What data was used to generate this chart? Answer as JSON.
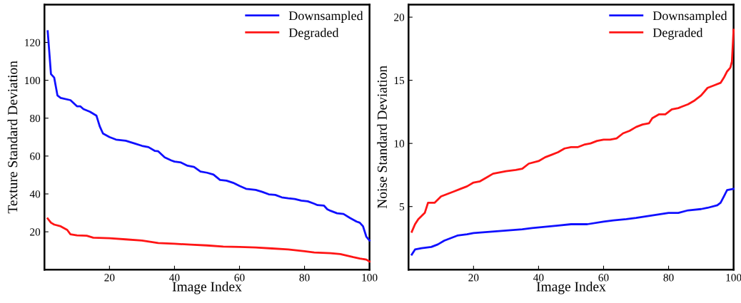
{
  "chart_data": [
    {
      "type": "line",
      "xlabel": "Image Index",
      "ylabel": "Texture Standard Deviation",
      "xlim": [
        0,
        100
      ],
      "ylim": [
        0,
        140
      ],
      "xticks": [
        20,
        40,
        60,
        80,
        100
      ],
      "yticks": [
        20,
        40,
        60,
        80,
        100,
        120
      ],
      "legend": "top right",
      "grid": false,
      "marker": "none",
      "line_style": "solid",
      "series": [
        {
          "name": "Downsampled",
          "color": "#1010ff",
          "x": [
            1,
            2,
            3,
            4,
            5,
            8,
            10,
            11,
            12,
            14,
            16,
            17,
            18,
            20,
            22,
            25,
            28,
            30,
            32,
            34,
            35,
            37,
            39,
            40,
            42,
            44,
            46,
            48,
            50,
            52,
            54,
            56,
            58,
            60,
            62,
            65,
            67,
            69,
            71,
            73,
            75,
            77,
            79,
            81,
            83,
            84,
            86,
            87,
            88,
            90,
            92,
            94,
            96,
            97,
            98,
            99,
            100
          ],
          "values": [
            125.9,
            103.3,
            101.4,
            92,
            90.7,
            89.5,
            86.3,
            86.3,
            84.8,
            83.4,
            81.3,
            75.7,
            71.9,
            70,
            68.7,
            68.1,
            66.5,
            65.4,
            64.7,
            62.7,
            62.5,
            59.3,
            57.7,
            57.1,
            56.6,
            54.9,
            54.3,
            51.8,
            51.2,
            50.2,
            47.4,
            47,
            45.9,
            44.2,
            42.7,
            42.1,
            41.1,
            39.8,
            39.5,
            38.2,
            37.7,
            37.3,
            36.5,
            36.1,
            34.8,
            34.1,
            33.8,
            31.9,
            31.1,
            29.8,
            29.4,
            27.3,
            25.4,
            24.8,
            22.9,
            17.5,
            15.4
          ]
        },
        {
          "name": "Degraded",
          "color": "#ff1515",
          "x": [
            1,
            2,
            3,
            5,
            7,
            8,
            10,
            13,
            15,
            20,
            25,
            30,
            35,
            40,
            45,
            50,
            55,
            60,
            65,
            70,
            75,
            80,
            83,
            88,
            91,
            95,
            97,
            99,
            100
          ],
          "values": [
            27,
            24.8,
            23.8,
            22.9,
            21,
            18.7,
            18.1,
            17.9,
            16.9,
            16.6,
            16,
            15.4,
            14.1,
            13.7,
            13.2,
            12.8,
            12.2,
            12,
            11.7,
            11.2,
            10.7,
            9.7,
            9.1,
            8.7,
            8.2,
            6.6,
            5.9,
            5.3,
            4.3
          ]
        }
      ]
    },
    {
      "type": "line",
      "xlabel": "Image Index",
      "ylabel": "Noise Standard Deviation",
      "xlim": [
        0,
        100
      ],
      "ylim": [
        0,
        21
      ],
      "xticks": [
        20,
        40,
        60,
        80,
        100
      ],
      "yticks": [
        5,
        10,
        15,
        20
      ],
      "legend": "top right",
      "grid": false,
      "marker": "none",
      "line_style": "solid",
      "series": [
        {
          "name": "Downsampled",
          "color": "#1010ff",
          "x": [
            1,
            2,
            4,
            7,
            9,
            11,
            13,
            15,
            18,
            20,
            25,
            30,
            35,
            38,
            42,
            46,
            50,
            55,
            60,
            63,
            67,
            70,
            75,
            80,
            83,
            86,
            90,
            92,
            95,
            96,
            97,
            98,
            100
          ],
          "values": [
            1.2,
            1.6,
            1.7,
            1.8,
            2.0,
            2.3,
            2.5,
            2.7,
            2.8,
            2.9,
            3.0,
            3.1,
            3.2,
            3.3,
            3.4,
            3.5,
            3.6,
            3.6,
            3.8,
            3.9,
            4.0,
            4.1,
            4.3,
            4.5,
            4.5,
            4.7,
            4.8,
            4.9,
            5.1,
            5.3,
            5.8,
            6.3,
            6.4
          ]
        },
        {
          "name": "Degraded",
          "color": "#ff1515",
          "x": [
            1,
            2,
            3,
            5,
            6,
            8,
            10,
            12,
            14,
            16,
            18,
            20,
            22,
            24,
            26,
            28,
            30,
            33,
            35,
            37,
            40,
            42,
            44,
            46,
            48,
            50,
            52,
            54,
            56,
            58,
            60,
            62,
            64,
            66,
            68,
            70,
            72,
            74,
            75,
            77,
            79,
            81,
            83,
            84,
            86,
            88,
            90,
            92,
            94,
            96,
            97,
            98,
            99,
            99.5,
            100
          ],
          "values": [
            3.0,
            3.6,
            4.0,
            4.5,
            5.3,
            5.3,
            5.8,
            6.0,
            6.2,
            6.4,
            6.6,
            6.9,
            7.0,
            7.3,
            7.6,
            7.7,
            7.8,
            7.9,
            8.0,
            8.4,
            8.6,
            8.9,
            9.1,
            9.3,
            9.6,
            9.7,
            9.7,
            9.9,
            10.0,
            10.2,
            10.3,
            10.3,
            10.4,
            10.8,
            11.0,
            11.3,
            11.5,
            11.6,
            12.0,
            12.3,
            12.3,
            12.7,
            12.8,
            12.9,
            13.1,
            13.4,
            13.8,
            14.4,
            14.6,
            14.8,
            15.2,
            15.7,
            16.0,
            16.5,
            19.0
          ]
        }
      ]
    }
  ]
}
